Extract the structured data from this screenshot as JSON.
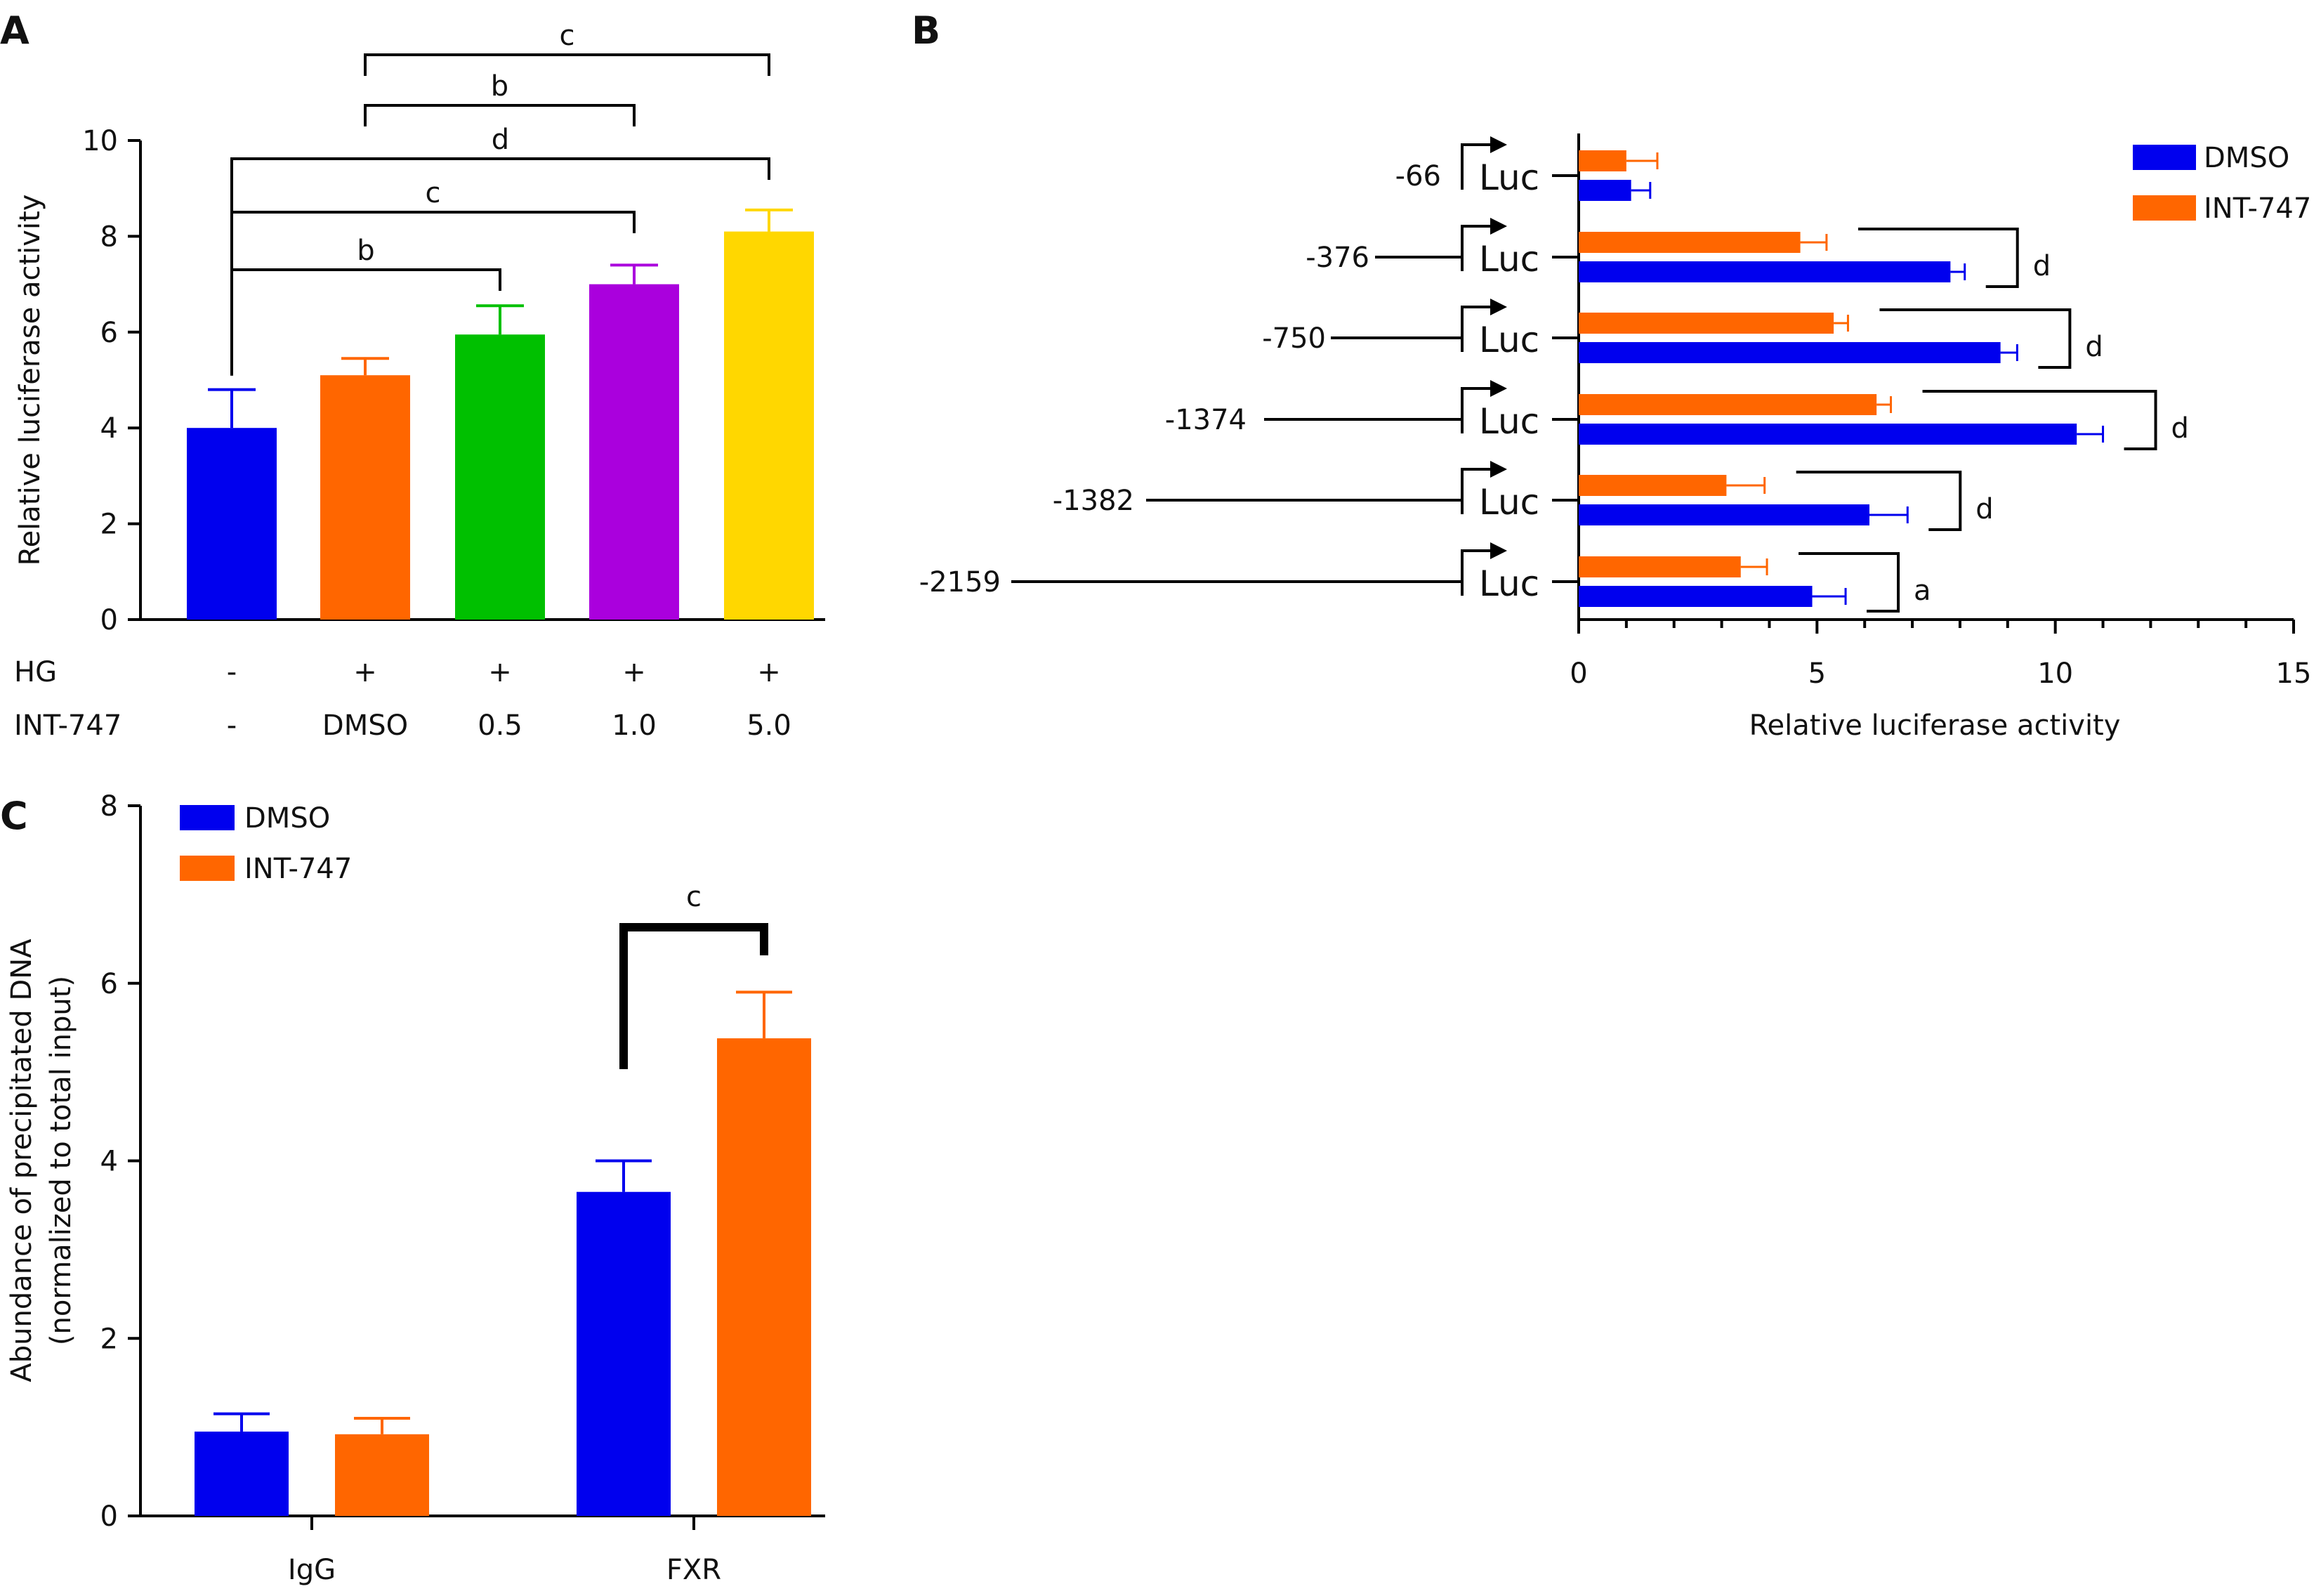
{
  "colors": {
    "blue": "#0000ee",
    "orange": "#ff6600",
    "green": "#00c000",
    "purple": "#aa00dd",
    "yellow": "#ffd700",
    "axis": "#000000"
  },
  "chart_data": [
    {
      "panel": "A",
      "type": "bar",
      "ylabel": "Relative luciferase activity",
      "ylim": [
        0,
        10
      ],
      "yticks": [
        "0",
        "2",
        "4",
        "6",
        "8",
        "10"
      ],
      "row_labels": [
        "HG",
        "INT-747"
      ],
      "categories": [
        {
          "hg": "-",
          "int747": "-",
          "value": 4.0,
          "error": 0.8,
          "color": "#0000ee"
        },
        {
          "hg": "+",
          "int747": "DMSO",
          "value": 5.1,
          "error": 0.35,
          "color": "#ff6600"
        },
        {
          "hg": "+",
          "int747": "0.5",
          "value": 5.95,
          "error": 0.6,
          "color": "#00c000"
        },
        {
          "hg": "+",
          "int747": "1.0",
          "value": 7.0,
          "error": 0.4,
          "color": "#aa00dd"
        },
        {
          "hg": "+",
          "int747": "5.0",
          "value": 8.1,
          "error": 0.45,
          "color": "#ffd700"
        }
      ],
      "significance": [
        {
          "from": 1,
          "to": 4,
          "label": "c"
        },
        {
          "from": 1,
          "to": 3,
          "label": "b"
        },
        {
          "from": 0,
          "to": 4,
          "label": "d"
        },
        {
          "from": 0,
          "to": 3,
          "label": "c"
        },
        {
          "from": 0,
          "to": 2,
          "label": "b"
        }
      ]
    },
    {
      "panel": "B",
      "type": "bar",
      "orientation": "horizontal",
      "xlabel": "Relative luciferase activity",
      "xlim": [
        0,
        15
      ],
      "xticks": [
        "0",
        "5",
        "10",
        "15"
      ],
      "reporter_label": "Luc",
      "legend": [
        "DMSO",
        "INT-747"
      ],
      "legend_position": "top-right",
      "constructs": [
        {
          "label": "-66",
          "dmso": 1.1,
          "dmso_err": 0.4,
          "int747": 1.0,
          "int747_err": 0.65,
          "sig": ""
        },
        {
          "label": "-376",
          "dmso": 7.8,
          "dmso_err": 0.3,
          "int747": 4.65,
          "int747_err": 0.55,
          "sig": "d"
        },
        {
          "label": "-750",
          "dmso": 8.85,
          "dmso_err": 0.35,
          "int747": 5.35,
          "int747_err": 0.3,
          "sig": "d"
        },
        {
          "label": "-1374",
          "dmso": 10.45,
          "dmso_err": 0.55,
          "int747": 6.25,
          "int747_err": 0.3,
          "sig": "d"
        },
        {
          "label": "-1382",
          "dmso": 6.1,
          "dmso_err": 0.8,
          "int747": 3.1,
          "int747_err": 0.8,
          "sig": "d"
        },
        {
          "label": "-2159",
          "dmso": 4.9,
          "dmso_err": 0.7,
          "int747": 3.4,
          "int747_err": 0.55,
          "sig": "a"
        }
      ]
    },
    {
      "panel": "C",
      "type": "bar",
      "ylabel_line1": "Abundance of precipitated DNA",
      "ylabel_line2": "(normalized to total input)",
      "ylim": [
        0,
        8
      ],
      "yticks": [
        "0",
        "2",
        "4",
        "6",
        "8"
      ],
      "categories": [
        "IgG",
        "FXR"
      ],
      "legend_position": "top-left",
      "series": [
        {
          "name": "DMSO",
          "values": [
            0.95,
            3.65
          ],
          "errors": [
            0.2,
            0.35
          ],
          "color": "#0000ee"
        },
        {
          "name": "INT-747",
          "values": [
            0.92,
            5.38
          ],
          "errors": [
            0.18,
            0.52
          ],
          "color": "#ff6600"
        }
      ],
      "significance": [
        {
          "category": 1,
          "label": "c"
        }
      ]
    }
  ]
}
